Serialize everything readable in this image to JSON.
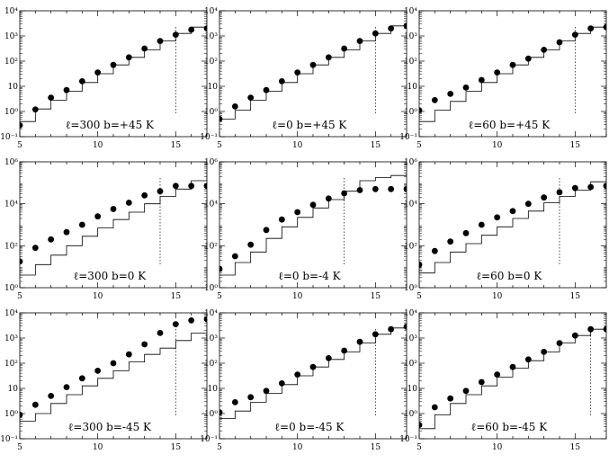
{
  "chart_data": [
    {
      "type": "scatter",
      "title": "",
      "panel_label": "ℓ=300  b=+45    K",
      "xlim": [
        5,
        17
      ],
      "ylim_exp": [
        -1,
        4
      ],
      "x_ticks": [
        {
          "v": 5,
          "t": "5"
        },
        {
          "v": 10,
          "t": "10"
        },
        {
          "v": 15,
          "t": "15"
        }
      ],
      "y_ticks": [
        {
          "e": -1,
          "t": "10⁻¹"
        },
        {
          "e": 0,
          "t": "10⁰"
        },
        {
          "e": 1,
          "t": "10"
        },
        {
          "e": 2,
          "t": "10²"
        },
        {
          "e": 3,
          "t": "10³"
        },
        {
          "e": 4,
          "t": "10⁴"
        }
      ],
      "cutoff_x": 15,
      "series": [
        {
          "kind": "points",
          "x": [
            5,
            6,
            7,
            8,
            9,
            10,
            11,
            12,
            13,
            14,
            15,
            16,
            17
          ],
          "log10_y": [
            -0.55,
            0.08,
            0.55,
            0.85,
            1.2,
            1.55,
            1.85,
            2.15,
            2.5,
            2.8,
            3.05,
            3.25,
            3.3
          ]
        },
        {
          "kind": "step",
          "x": [
            5,
            6,
            7,
            8,
            9,
            10,
            11,
            12,
            13,
            14,
            15,
            16,
            17
          ],
          "log10_y": [
            -0.4,
            0.1,
            0.45,
            0.8,
            1.15,
            1.5,
            1.85,
            2.15,
            2.45,
            2.8,
            3.1,
            3.35,
            3.65
          ]
        }
      ]
    },
    {
      "type": "scatter",
      "title": "",
      "panel_label": "ℓ=0  b=+45    K",
      "xlim": [
        5,
        17
      ],
      "ylim_exp": [
        -1,
        4
      ],
      "x_ticks": [
        {
          "v": 5,
          "t": "5"
        },
        {
          "v": 10,
          "t": "10"
        },
        {
          "v": 15,
          "t": "15"
        }
      ],
      "y_ticks": [
        {
          "e": -1,
          "t": "10⁻¹"
        },
        {
          "e": 0,
          "t": "10⁰"
        },
        {
          "e": 1,
          "t": "10"
        },
        {
          "e": 2,
          "t": "10²"
        },
        {
          "e": 3,
          "t": "10³"
        },
        {
          "e": 4,
          "t": "10⁴"
        }
      ],
      "cutoff_x": 15,
      "series": [
        {
          "kind": "points",
          "x": [
            5,
            6,
            7,
            8,
            9,
            10,
            11,
            12,
            13,
            14,
            15,
            16,
            17
          ],
          "log10_y": [
            -0.3,
            0.2,
            0.55,
            0.85,
            1.2,
            1.55,
            1.85,
            2.15,
            2.5,
            2.8,
            3.1,
            3.3,
            3.4
          ]
        },
        {
          "kind": "step",
          "x": [
            5,
            6,
            7,
            8,
            9,
            10,
            11,
            12,
            13,
            14,
            15,
            16,
            17
          ],
          "log10_y": [
            -0.3,
            0.05,
            0.45,
            0.8,
            1.15,
            1.5,
            1.85,
            2.15,
            2.45,
            2.8,
            3.1,
            3.4,
            3.65
          ]
        }
      ]
    },
    {
      "type": "scatter",
      "title": "",
      "panel_label": "ℓ=60  b=+45    K",
      "xlim": [
        5,
        17
      ],
      "ylim_exp": [
        -1,
        4
      ],
      "x_ticks": [
        {
          "v": 5,
          "t": "5"
        },
        {
          "v": 10,
          "t": "10"
        },
        {
          "v": 15,
          "t": "15"
        }
      ],
      "y_ticks": [
        {
          "e": -1,
          "t": "10⁻¹"
        },
        {
          "e": 0,
          "t": "10⁰"
        },
        {
          "e": 1,
          "t": "10"
        },
        {
          "e": 2,
          "t": "10²"
        },
        {
          "e": 3,
          "t": "10³"
        },
        {
          "e": 4,
          "t": "10⁴"
        }
      ],
      "cutoff_x": 15,
      "series": [
        {
          "kind": "points",
          "x": [
            5,
            6,
            7,
            8,
            9,
            10,
            11,
            12,
            13,
            14,
            15,
            16,
            17
          ],
          "log10_y": [
            0.05,
            0.45,
            0.7,
            0.95,
            1.25,
            1.55,
            1.85,
            2.1,
            2.45,
            2.75,
            3.05,
            3.3,
            3.35
          ]
        },
        {
          "kind": "step",
          "x": [
            5,
            6,
            7,
            8,
            9,
            10,
            11,
            12,
            13,
            14,
            15,
            16,
            17
          ],
          "log10_y": [
            -0.4,
            0.05,
            0.4,
            0.8,
            1.15,
            1.5,
            1.85,
            2.15,
            2.45,
            2.8,
            3.1,
            3.35,
            3.65
          ]
        }
      ]
    },
    {
      "type": "scatter",
      "title": "",
      "panel_label": "ℓ=300  b=0    K",
      "xlim": [
        5,
        17
      ],
      "ylim_exp": [
        0,
        6
      ],
      "x_ticks": [
        {
          "v": 5,
          "t": "5"
        },
        {
          "v": 10,
          "t": "10"
        },
        {
          "v": 15,
          "t": "15"
        }
      ],
      "y_ticks": [
        {
          "e": 0,
          "t": "10⁰"
        },
        {
          "e": 2,
          "t": "10²"
        },
        {
          "e": 4,
          "t": "10⁴"
        },
        {
          "e": 6,
          "t": "10⁶"
        }
      ],
      "cutoff_x": 14,
      "series": [
        {
          "kind": "points",
          "x": [
            5,
            6,
            7,
            8,
            9,
            10,
            11,
            12,
            13,
            14,
            15,
            16,
            17
          ],
          "log10_y": [
            1.25,
            1.9,
            2.3,
            2.65,
            3.0,
            3.4,
            3.75,
            4.05,
            4.4,
            4.6,
            4.85,
            4.85,
            4.85
          ]
        },
        {
          "kind": "step",
          "x": [
            5,
            6,
            7,
            8,
            9,
            10,
            11,
            12,
            13,
            14,
            15,
            16,
            17
          ],
          "log10_y": [
            0.6,
            1.1,
            1.55,
            2.0,
            2.45,
            2.85,
            3.25,
            3.6,
            4.0,
            4.35,
            4.7,
            5.1,
            5.6
          ]
        }
      ]
    },
    {
      "type": "scatter",
      "title": "",
      "panel_label": "ℓ=0  b=-4    K",
      "xlim": [
        5,
        17
      ],
      "ylim_exp": [
        0,
        6
      ],
      "x_ticks": [
        {
          "v": 5,
          "t": "5"
        },
        {
          "v": 10,
          "t": "10"
        },
        {
          "v": 15,
          "t": "15"
        }
      ],
      "y_ticks": [
        {
          "e": 0,
          "t": "10⁰"
        },
        {
          "e": 2,
          "t": "10²"
        },
        {
          "e": 4,
          "t": "10⁴"
        },
        {
          "e": 6,
          "t": "10⁶"
        }
      ],
      "cutoff_x": 13,
      "series": [
        {
          "kind": "points",
          "x": [
            5,
            6,
            7,
            8,
            9,
            10,
            11,
            12,
            13,
            14,
            15,
            16,
            17
          ],
          "log10_y": [
            0.9,
            1.5,
            2.05,
            2.75,
            3.25,
            3.6,
            3.95,
            4.25,
            4.5,
            4.65,
            4.7,
            4.7,
            4.7
          ]
        },
        {
          "kind": "step",
          "x": [
            5,
            6,
            7,
            8,
            9,
            10,
            11,
            12,
            13,
            14,
            15,
            16,
            17
          ],
          "log10_y": [
            0.6,
            1.2,
            1.7,
            2.35,
            2.9,
            3.35,
            3.8,
            4.2,
            4.6,
            5.1,
            5.25,
            5.35,
            5.55
          ]
        }
      ]
    },
    {
      "type": "scatter",
      "title": "",
      "panel_label": "ℓ=60  b=0    K",
      "xlim": [
        5,
        17
      ],
      "ylim_exp": [
        0,
        6
      ],
      "x_ticks": [
        {
          "v": 5,
          "t": "5"
        },
        {
          "v": 10,
          "t": "10"
        },
        {
          "v": 15,
          "t": "15"
        }
      ],
      "y_ticks": [
        {
          "e": 0,
          "t": "10⁰"
        },
        {
          "e": 2,
          "t": "10²"
        },
        {
          "e": 4,
          "t": "10⁴"
        },
        {
          "e": 6,
          "t": "10⁶"
        }
      ],
      "cutoff_x": 14,
      "series": [
        {
          "kind": "points",
          "x": [
            5,
            6,
            7,
            8,
            9,
            10,
            11,
            12,
            13,
            14,
            15,
            16,
            17
          ],
          "log10_y": [
            1.1,
            1.75,
            2.2,
            2.6,
            3.0,
            3.35,
            3.65,
            4.0,
            4.3,
            4.55,
            4.75,
            4.8,
            4.85
          ]
        },
        {
          "kind": "step",
          "x": [
            5,
            6,
            7,
            8,
            9,
            10,
            11,
            12,
            13,
            14,
            15,
            16,
            17
          ],
          "log10_y": [
            0.7,
            1.2,
            1.7,
            2.1,
            2.5,
            2.9,
            3.3,
            3.65,
            4.05,
            4.35,
            4.65,
            5.05,
            5.4
          ]
        }
      ]
    },
    {
      "type": "scatter",
      "title": "",
      "panel_label": "ℓ=300  b=-45    K",
      "xlim": [
        5,
        17
      ],
      "ylim_exp": [
        -1,
        4
      ],
      "x_ticks": [
        {
          "v": 5,
          "t": "5"
        },
        {
          "v": 10,
          "t": "10"
        },
        {
          "v": 15,
          "t": "15"
        }
      ],
      "y_ticks": [
        {
          "e": -1,
          "t": "10⁻¹"
        },
        {
          "e": 0,
          "t": "10⁰"
        },
        {
          "e": 1,
          "t": "10"
        },
        {
          "e": 2,
          "t": "10²"
        },
        {
          "e": 3,
          "t": "10³"
        },
        {
          "e": 4,
          "t": "10⁴"
        }
      ],
      "cutoff_x": 15,
      "series": [
        {
          "kind": "points",
          "x": [
            5,
            6,
            7,
            8,
            9,
            10,
            11,
            12,
            13,
            14,
            15,
            16,
            17
          ],
          "log10_y": [
            -0.05,
            0.35,
            0.7,
            1.05,
            1.4,
            1.7,
            2.0,
            2.35,
            2.75,
            3.2,
            3.55,
            3.7,
            3.75
          ]
        },
        {
          "kind": "step",
          "x": [
            5,
            6,
            7,
            8,
            9,
            10,
            11,
            12,
            13,
            14,
            15,
            16,
            17
          ],
          "log10_y": [
            -0.3,
            0.0,
            0.4,
            0.75,
            1.1,
            1.4,
            1.7,
            2.05,
            2.35,
            2.6,
            2.9,
            3.2,
            3.75
          ]
        }
      ]
    },
    {
      "type": "scatter",
      "title": "",
      "panel_label": "ℓ=0  b=-45    K",
      "xlim": [
        5,
        17
      ],
      "ylim_exp": [
        -1,
        4
      ],
      "x_ticks": [
        {
          "v": 5,
          "t": "5"
        },
        {
          "v": 10,
          "t": "10"
        },
        {
          "v": 15,
          "t": "15"
        }
      ],
      "y_ticks": [
        {
          "e": -1,
          "t": "10⁻¹"
        },
        {
          "e": 0,
          "t": "10⁰"
        },
        {
          "e": 1,
          "t": "10"
        },
        {
          "e": 2,
          "t": "10²"
        },
        {
          "e": 3,
          "t": "10³"
        },
        {
          "e": 4,
          "t": "10⁴"
        }
      ],
      "cutoff_x": 15,
      "series": [
        {
          "kind": "points",
          "x": [
            5,
            6,
            7,
            8,
            9,
            10,
            11,
            12,
            13,
            14,
            15,
            16,
            17
          ],
          "log10_y": [
            0.05,
            0.45,
            0.65,
            0.9,
            1.2,
            1.55,
            1.85,
            2.2,
            2.5,
            2.85,
            3.15,
            3.35,
            3.45
          ]
        },
        {
          "kind": "step",
          "x": [
            5,
            6,
            7,
            8,
            9,
            10,
            11,
            12,
            13,
            14,
            15,
            16,
            17
          ],
          "log10_y": [
            -0.2,
            0.1,
            0.45,
            0.8,
            1.15,
            1.5,
            1.85,
            2.15,
            2.45,
            2.8,
            3.15,
            3.4,
            3.65
          ]
        }
      ]
    },
    {
      "type": "scatter",
      "title": "",
      "panel_label": "ℓ=60  b=-45    K",
      "xlim": [
        5,
        17
      ],
      "ylim_exp": [
        -1,
        4
      ],
      "x_ticks": [
        {
          "v": 5,
          "t": "5"
        },
        {
          "v": 10,
          "t": "10"
        },
        {
          "v": 15,
          "t": "15"
        }
      ],
      "y_ticks": [
        {
          "e": -1,
          "t": "10⁻¹"
        },
        {
          "e": 0,
          "t": "10⁰"
        },
        {
          "e": 1,
          "t": "10"
        },
        {
          "e": 2,
          "t": "10²"
        },
        {
          "e": 3,
          "t": "10³"
        },
        {
          "e": 4,
          "t": "10⁴"
        }
      ],
      "cutoff_x": 16,
      "series": [
        {
          "kind": "points",
          "x": [
            5,
            6,
            7,
            8,
            9,
            10,
            11,
            12,
            13,
            14,
            15,
            16,
            17
          ],
          "log10_y": [
            -0.45,
            0.25,
            0.6,
            0.9,
            1.25,
            1.55,
            1.85,
            2.15,
            2.45,
            2.8,
            3.1,
            3.35,
            3.35
          ]
        },
        {
          "kind": "step",
          "x": [
            5,
            6,
            7,
            8,
            9,
            10,
            11,
            12,
            13,
            14,
            15,
            16,
            17
          ],
          "log10_y": [
            -0.6,
            -0.05,
            0.4,
            0.75,
            1.1,
            1.45,
            1.8,
            2.1,
            2.45,
            2.8,
            3.1,
            3.35,
            3.65
          ]
        }
      ]
    }
  ]
}
